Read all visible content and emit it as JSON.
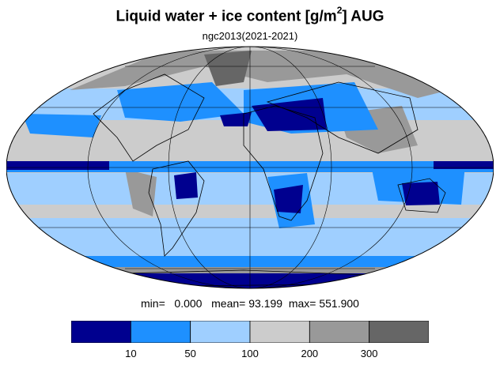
{
  "title": {
    "main": "Liquid water + ice content [g/m",
    "sup": "2",
    "suffix": "] AUG"
  },
  "subtitle": "ngc2013(2021-2021)",
  "stats": {
    "min_label": "min=",
    "min": "0.000",
    "mean_label": "mean=",
    "mean": "93.199",
    "max_label": "max=",
    "max": "551.900"
  },
  "legend": {
    "colors": [
      "#00008f",
      "#1e90ff",
      "#9fcfff",
      "#cccccc",
      "#999999",
      "#666666"
    ],
    "ticks": [
      "10",
      "50",
      "100",
      "200",
      "300"
    ]
  },
  "map": {
    "projection": "mollweide",
    "graticule": {
      "meridian_step_deg": 60,
      "parallel_step_deg": 30
    }
  }
}
